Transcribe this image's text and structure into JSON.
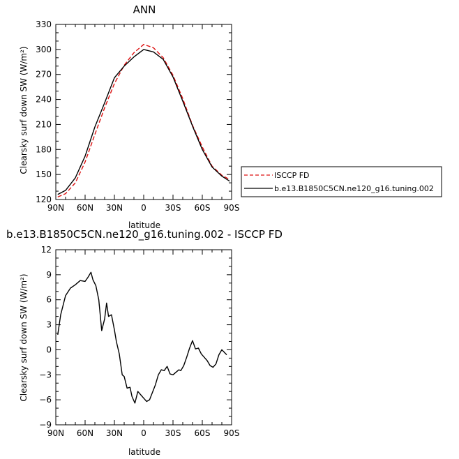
{
  "chart_data": [
    {
      "type": "line",
      "title": "ANN",
      "xlabel": "latitude",
      "ylabel": "Clearsky surf down SW (W/m²)",
      "x_tick_labels": [
        "90N",
        "60N",
        "30N",
        "0",
        "30S",
        "60S",
        "90S"
      ],
      "x_tick_values": [
        90,
        60,
        30,
        0,
        -30,
        -60,
        -90
      ],
      "xlim": [
        90,
        -90
      ],
      "ylim": [
        120,
        330
      ],
      "y_ticks": [
        120,
        150,
        180,
        210,
        240,
        270,
        300,
        330
      ],
      "legend_position": "right",
      "x": [
        88,
        80,
        70,
        60,
        50,
        40,
        30,
        20,
        10,
        0,
        -10,
        -20,
        -30,
        -40,
        -50,
        -60,
        -70,
        -80,
        -88
      ],
      "series": [
        {
          "name": "ISCCP FD",
          "color": "#dd1111",
          "dash": "dashed",
          "values": [
            123,
            127,
            140,
            165,
            198,
            230,
            259,
            281,
            296,
            306,
            302,
            290,
            269,
            241,
            209,
            183,
            160,
            149,
            144
          ]
        },
        {
          "name": "b.e13.B1850C5CN.ne120_g16.tuning.002",
          "color": "#000000",
          "dash": "solid",
          "values": [
            126,
            131,
            146,
            172,
            207,
            236,
            266,
            280,
            291,
            300,
            297,
            288,
            267,
            238,
            208,
            180,
            159,
            148,
            142
          ]
        }
      ]
    },
    {
      "type": "line",
      "title": "b.e13.B1850C5CN.ne120_g16.tuning.002 - ISCCP FD",
      "xlabel": "latitude",
      "ylabel": "Clearsky surf down SW (W/m²)",
      "x_tick_labels": [
        "90N",
        "60N",
        "30N",
        "0",
        "30S",
        "60S",
        "90S"
      ],
      "x_tick_values": [
        90,
        60,
        30,
        0,
        -30,
        -60,
        -90
      ],
      "xlim": [
        90,
        -90
      ],
      "ylim": [
        -9,
        12
      ],
      "y_ticks": [
        -9,
        -6,
        -3,
        0,
        3,
        6,
        9,
        12
      ],
      "series": [
        {
          "color": "#000000",
          "x": [
            88,
            85,
            80,
            75,
            70,
            65,
            60,
            57,
            54,
            52,
            49,
            46,
            43,
            40,
            38,
            36,
            33,
            30,
            28,
            25,
            22,
            20,
            17,
            14,
            12,
            9,
            6,
            3,
            0,
            -3,
            -6,
            -9,
            -12,
            -15,
            -18,
            -21,
            -24,
            -27,
            -30,
            -33,
            -36,
            -38,
            -41,
            -44,
            -47,
            -50,
            -53,
            -56,
            -59,
            -62,
            -65,
            -68,
            -71,
            -74,
            -77,
            -80,
            -83,
            -85,
            -88
          ],
          "values": [
            1.8,
            4.2,
            6.5,
            7.4,
            7.8,
            8.3,
            8.2,
            8.7,
            9.3,
            8.4,
            7.7,
            6.0,
            2.3,
            3.7,
            5.6,
            4.0,
            4.2,
            2.4,
            1.0,
            -0.5,
            -3.0,
            -3.2,
            -4.6,
            -4.5,
            -5.6,
            -6.4,
            -5.0,
            -5.4,
            -5.8,
            -6.2,
            -6.0,
            -5.1,
            -4.2,
            -3.0,
            -2.4,
            -2.5,
            -2.0,
            -2.9,
            -3.0,
            -2.7,
            -2.4,
            -2.5,
            -1.9,
            -0.9,
            0.2,
            1.1,
            0.1,
            0.2,
            -0.5,
            -0.9,
            -1.3,
            -1.9,
            -2.1,
            -1.7,
            -0.6,
            0,
            0,
            0,
            0
          ]
        }
      ]
    }
  ]
}
